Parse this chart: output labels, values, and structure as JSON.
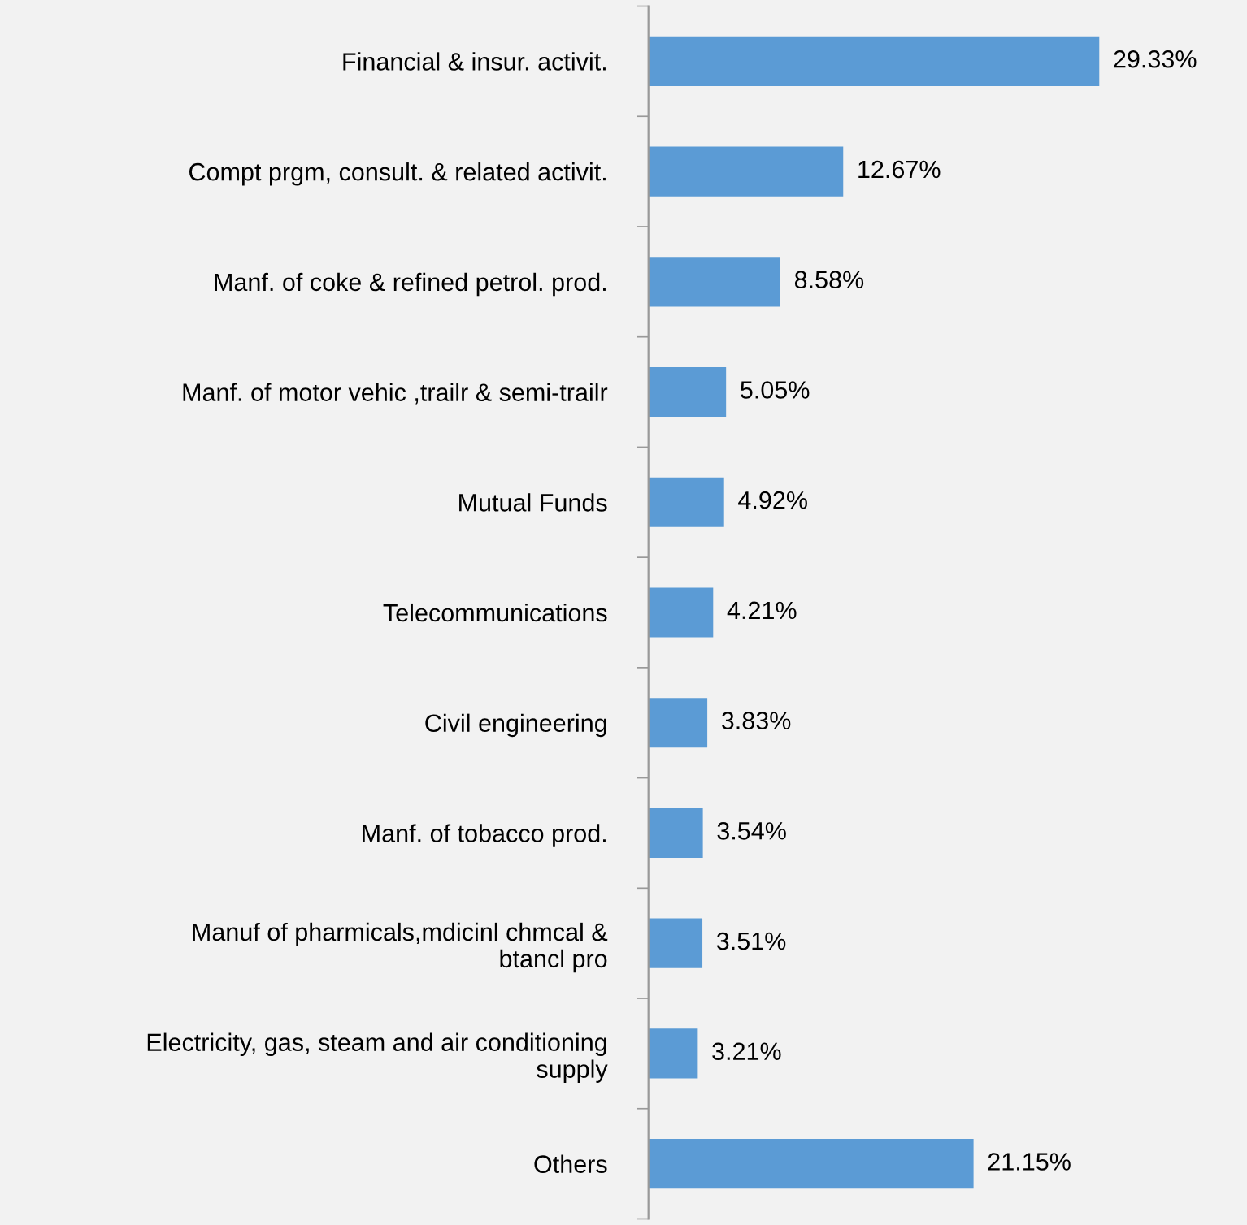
{
  "chart_data": {
    "type": "bar",
    "orientation": "horizontal",
    "categories": [
      "Financial & insur. activit.",
      "Compt prgm, consult. & related activit.",
      "Manf. of coke & refined petrol. prod.",
      "Manf. of motor vehic ,trailr & semi-trailr",
      "Mutual Funds",
      "Telecommunications",
      "Civil engineering",
      "Manf. of tobacco prod.",
      "Manuf of pharmicals,mdicinl chmcal &\nbtancl pro",
      "Electricity, gas, steam and air conditioning\nsupply",
      "Others"
    ],
    "values": [
      29.33,
      12.67,
      8.58,
      5.05,
      4.92,
      4.21,
      3.83,
      3.54,
      3.51,
      3.21,
      21.15
    ],
    "value_labels": [
      "29.33%",
      "12.67%",
      "8.58%",
      "5.05%",
      "4.92%",
      "4.21%",
      "3.83%",
      "3.54%",
      "3.51%",
      "3.21%",
      "21.15%"
    ],
    "color": "#5b9bd5",
    "grid": false,
    "legend": false
  }
}
